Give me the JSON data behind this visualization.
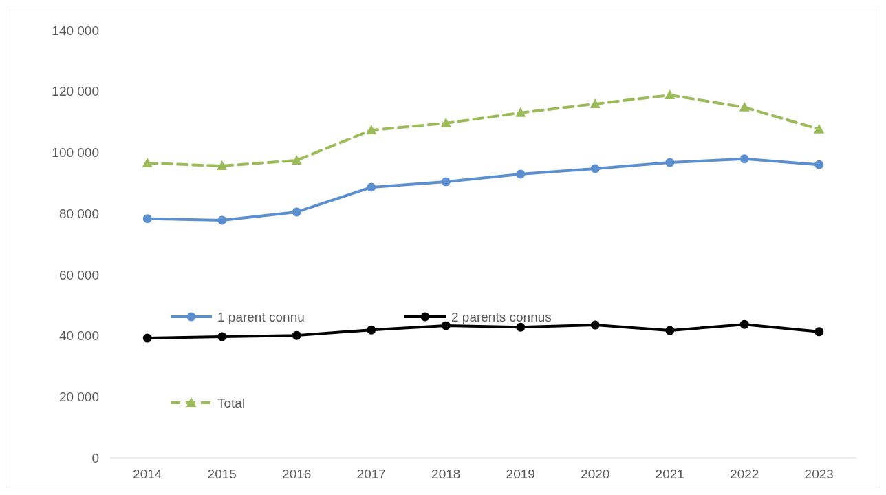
{
  "chart_data": {
    "type": "line",
    "categories": [
      "2014",
      "2015",
      "2016",
      "2017",
      "2018",
      "2019",
      "2020",
      "2021",
      "2022",
      "2023"
    ],
    "series": [
      {
        "name": "1 parent connu",
        "color": "#5b8fd0",
        "marker": "circle",
        "line_style": "solid",
        "values": [
          78300,
          77800,
          80500,
          88600,
          90400,
          92900,
          94700,
          96700,
          97900,
          96000
        ]
      },
      {
        "name": "2 parents connus",
        "color": "#000000",
        "marker": "circle",
        "line_style": "solid",
        "values": [
          39200,
          39700,
          40100,
          41900,
          43300,
          42800,
          43500,
          41700,
          43700,
          41300
        ]
      },
      {
        "name": "Total",
        "color": "#9bbb59",
        "marker": "triangle",
        "line_style": "dashed",
        "values": [
          96500,
          95600,
          97400,
          107300,
          109600,
          113000,
          115900,
          118800,
          114800,
          107600
        ]
      }
    ],
    "ylim": [
      0,
      140000
    ],
    "yticks": [
      {
        "value": 0,
        "label": "0"
      },
      {
        "value": 20000,
        "label": "20 000"
      },
      {
        "value": 40000,
        "label": "40 000"
      },
      {
        "value": 60000,
        "label": "60 000"
      },
      {
        "value": 80000,
        "label": "80 000"
      },
      {
        "value": 100000,
        "label": "100 000"
      },
      {
        "value": 120000,
        "label": "120 000"
      },
      {
        "value": 140000,
        "label": "140 000"
      }
    ],
    "grid": false,
    "legend": "left"
  }
}
